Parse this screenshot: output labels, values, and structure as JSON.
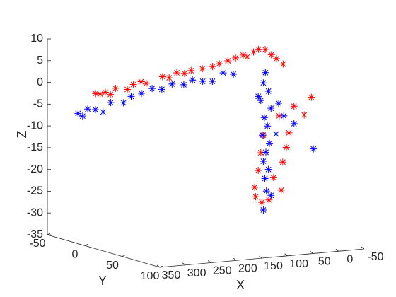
{
  "chart_data": {
    "type": "scatter3d",
    "marker": "*",
    "x_label": "X",
    "y_label": "Y",
    "z_label": "Z",
    "xlim": [
      -50,
      350
    ],
    "ylim": [
      -50,
      100
    ],
    "zlim": [
      -35,
      10
    ],
    "xticks": [
      350,
      300,
      250,
      200,
      150,
      100,
      50,
      0,
      -50
    ],
    "yticks": [
      -50,
      0,
      50,
      100
    ],
    "zticks": [
      10,
      5,
      0,
      -5,
      -10,
      -15,
      -20,
      -25,
      -30,
      -35
    ],
    "series": [
      {
        "color": "#ff0000",
        "x": [
          329,
          320,
          310,
          300,
          290,
          267,
          255,
          240,
          230,
          198,
          185,
          170,
          155,
          142,
          120,
          100,
          87,
          70,
          55,
          40,
          32,
          20,
          10,
          -3,
          -15,
          -25,
          -38,
          47,
          33,
          19,
          40,
          -8,
          -15,
          -1,
          -50,
          -64,
          30,
          -20,
          10,
          -5,
          35,
          -30,
          45
        ],
        "y": [
          0,
          0,
          0,
          0,
          0,
          0,
          0,
          0,
          0,
          0,
          0,
          0,
          0,
          0,
          0,
          0,
          0,
          0,
          0,
          0,
          0,
          0,
          0,
          0,
          0,
          0,
          0,
          20,
          20,
          20,
          20,
          20,
          20,
          20,
          20,
          20,
          20,
          20,
          20,
          20,
          20,
          20,
          20
        ],
        "z": [
          -0.3,
          -0.5,
          -0.2,
          -0.8,
          0.5,
          0,
          1,
          1.5,
          1,
          2.2,
          1.8,
          2.8,
          2.5,
          3,
          3.2,
          3.5,
          4,
          4.5,
          5,
          5.5,
          5,
          6,
          6.5,
          6.3,
          5,
          4,
          2.6,
          -23.8,
          -27.4,
          -27,
          -20,
          -18.6,
          -15.3,
          -7.9,
          -8.2,
          -4.3,
          -12,
          -12,
          -22,
          -25,
          -16,
          -6,
          -26
        ]
      },
      {
        "color": "#0000ff",
        "x": [
          334,
          325,
          315,
          300,
          285,
          270,
          245,
          230,
          210,
          189,
          170,
          150,
          127,
          110,
          90,
          71,
          50,
          30,
          26,
          30,
          20,
          35,
          15,
          28,
          22,
          32,
          18,
          25,
          30,
          20,
          27,
          24,
          30,
          15,
          0,
          -10,
          -30,
          -68,
          40,
          5
        ],
        "y": [
          -20,
          -20,
          -20,
          -20,
          -20,
          -20,
          -20,
          -20,
          -20,
          -20,
          -20,
          -20,
          -20,
          -20,
          -20,
          -20,
          -20,
          -20,
          20,
          20,
          20,
          20,
          20,
          20,
          20,
          20,
          20,
          20,
          20,
          20,
          20,
          20,
          20,
          20,
          20,
          20,
          20,
          20,
          20,
          20
        ],
        "z": [
          -5.8,
          -6.5,
          -5,
          -5.3,
          -6,
          -4,
          -4.3,
          -3,
          -2.5,
          -1.6,
          -2,
          -1,
          -1.4,
          -0.5,
          -1,
          -1.2,
          0.5,
          0,
          2.3,
          0,
          -2,
          -4,
          -6,
          -8,
          -10,
          -12,
          -14,
          -16,
          -18,
          -20,
          -22,
          -24.9,
          -29.2,
          -26,
          -5,
          -8,
          -10,
          -16.2,
          -3,
          -12
        ]
      }
    ]
  }
}
